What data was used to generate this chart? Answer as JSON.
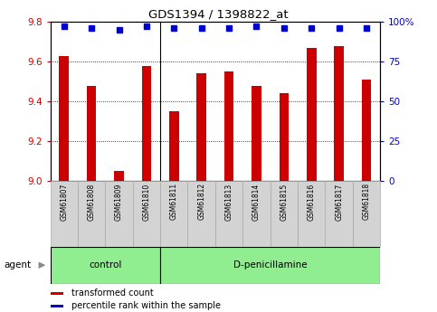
{
  "title": "GDS1394 / 1398822_at",
  "samples": [
    "GSM61807",
    "GSM61808",
    "GSM61809",
    "GSM61810",
    "GSM61811",
    "GSM61812",
    "GSM61813",
    "GSM61814",
    "GSM61815",
    "GSM61816",
    "GSM61817",
    "GSM61818"
  ],
  "bar_values": [
    9.63,
    9.48,
    9.05,
    9.58,
    9.35,
    9.54,
    9.55,
    9.48,
    9.44,
    9.67,
    9.68,
    9.51
  ],
  "percentile_values": [
    97,
    96,
    95,
    97,
    96,
    96,
    96,
    97,
    96,
    96,
    96,
    96
  ],
  "bar_color": "#cc0000",
  "percentile_color": "#0000cc",
  "ylim_left": [
    9.0,
    9.8
  ],
  "ylim_right": [
    0,
    100
  ],
  "yticks_left": [
    9.0,
    9.2,
    9.4,
    9.6,
    9.8
  ],
  "yticks_right": [
    0,
    25,
    50,
    75,
    100
  ],
  "ytick_labels_right": [
    "0",
    "25",
    "50",
    "75",
    "100%"
  ],
  "grid_values": [
    9.2,
    9.4,
    9.6
  ],
  "ctrl_count": 4,
  "treat_count": 8,
  "control_label": "control",
  "treatment_label": "D-penicillamine",
  "agent_label": "agent",
  "legend_bar_label": "transformed count",
  "legend_pct_label": "percentile rank within the sample",
  "control_bg": "#90EE90",
  "treatment_bg": "#90EE90",
  "xlabel_bg": "#d3d3d3",
  "plot_bg": "#ffffff",
  "bar_width": 0.35
}
